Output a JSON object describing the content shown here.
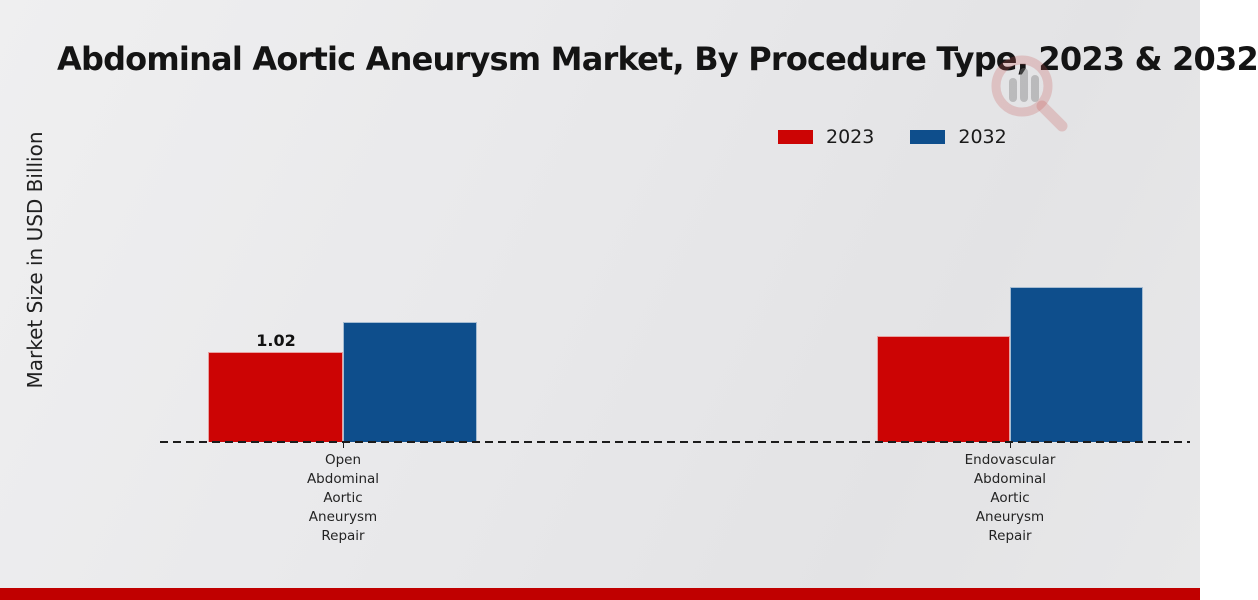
{
  "chart_data": {
    "type": "bar",
    "title": "Abdominal Aortic Aneurysm Market, By Procedure Type, 2023 & 2032",
    "ylabel": "Market Size in USD Billion",
    "xlabel": "",
    "categories": [
      "Open Abdominal Aortic Aneurysm Repair",
      "Endovascular Abdominal Aortic Aneurysm Repair"
    ],
    "series": [
      {
        "name": "2023",
        "color": "#cc0404",
        "values": [
          1.02,
          1.21
        ]
      },
      {
        "name": "2032",
        "color": "#0e4e8c",
        "values": [
          1.36,
          1.76
        ]
      }
    ],
    "value_label": {
      "text": "1.02",
      "series": "2023",
      "category": "Open Abdominal Aortic Aneurysm Repair"
    },
    "ylim": [
      0,
      4
    ],
    "grid": false,
    "legend_position": "top-right",
    "baseline_style": "dashed"
  },
  "footer": {
    "accent_color": "#c00000"
  },
  "watermark": {
    "icon": "magnifier-bar-chart-logo"
  }
}
